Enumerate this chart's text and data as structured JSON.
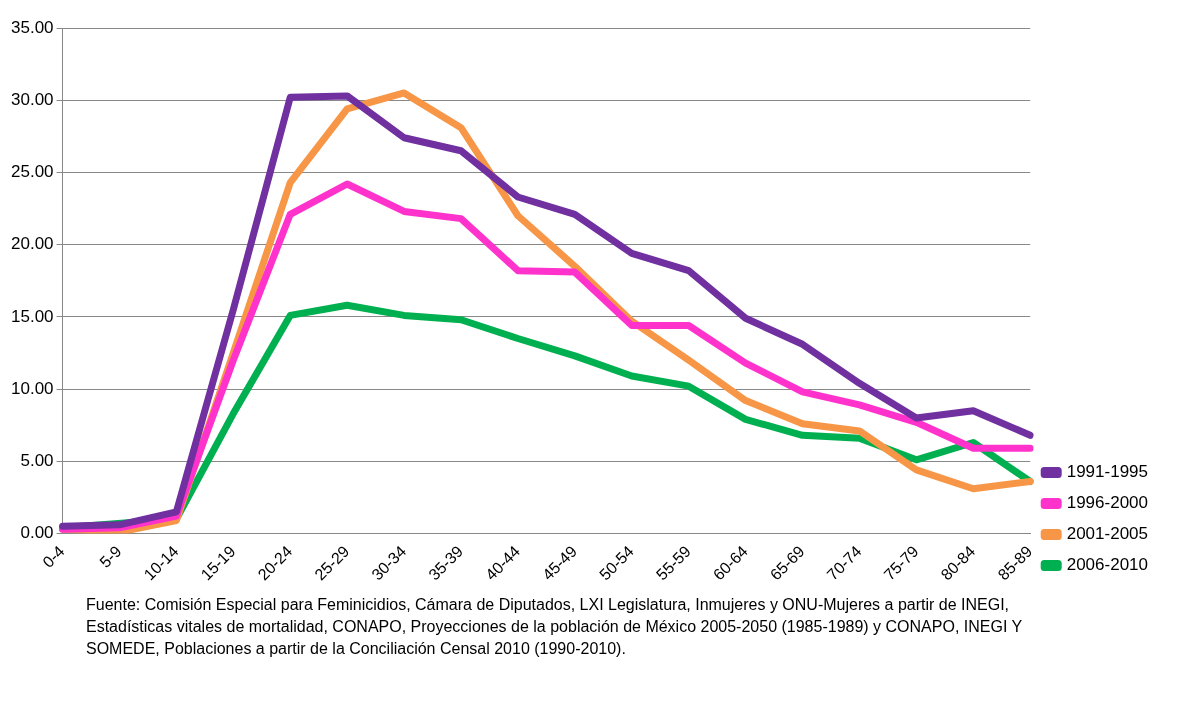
{
  "chart_data": {
    "type": "line",
    "categories": [
      "0-4",
      "5-9",
      "10-14",
      "15-19",
      "20-24",
      "25-29",
      "30-34",
      "35-39",
      "40-44",
      "45-49",
      "50-54",
      "55-59",
      "60-64",
      "65-69",
      "70-74",
      "75-79",
      "80-84",
      "85-89"
    ],
    "series": [
      {
        "name": "1991-1995",
        "color": "#7030a0",
        "values": [
          0.5,
          0.6,
          1.5,
          15.5,
          30.2,
          30.3,
          27.4,
          26.5,
          23.3,
          22.1,
          19.4,
          18.2,
          14.9,
          13.1,
          10.4,
          8.0,
          8.5,
          6.8
        ]
      },
      {
        "name": "1996-2000",
        "color": "#ff33cc",
        "values": [
          0.3,
          0.4,
          1.2,
          12.0,
          22.1,
          24.2,
          22.3,
          21.8,
          18.2,
          18.1,
          14.4,
          14.4,
          11.8,
          9.8,
          8.9,
          7.7,
          5.9,
          5.9
        ]
      },
      {
        "name": "2001-2005",
        "color": "#f79646",
        "values": [
          0.3,
          0.1,
          0.9,
          12.5,
          24.3,
          29.4,
          30.5,
          28.1,
          22.0,
          18.5,
          14.7,
          12.0,
          9.2,
          7.6,
          7.1,
          4.4,
          3.1,
          3.6
        ]
      },
      {
        "name": "2006-2010",
        "color": "#00b050",
        "values": [
          0.4,
          null,
          1.0,
          8.3,
          15.1,
          15.8,
          15.1,
          14.8,
          13.5,
          12.3,
          10.9,
          10.2,
          7.9,
          6.8,
          6.6,
          5.1,
          6.3,
          3.6
        ]
      }
    ],
    "ylim": [
      0,
      35
    ],
    "yticks": [
      {
        "value": 0,
        "label": "0.00"
      },
      {
        "value": 5,
        "label": "5.00"
      },
      {
        "value": 10,
        "label": "10.00"
      },
      {
        "value": 15,
        "label": "15.00"
      },
      {
        "value": 20,
        "label": "20.00"
      },
      {
        "value": 25,
        "label": "25.00"
      },
      {
        "value": 30,
        "label": "30.00"
      },
      {
        "value": 35,
        "label": "35.00"
      }
    ],
    "grid": "y",
    "legend": "right",
    "marker": "none",
    "line_style": "solid",
    "annotations": [
      "Fuente:  Comisión Especial para Feminicidios, Cámara de Diputados, LXI Legislatura, Inmujeres y  ONU-Mujeres a partir de INEGI, Estadísticas  vitales de mortalidad, CONAPO,  Proyecciones de la población de México 2005-2050 (1985-1989) y CONAPO, INEGI Y SOMEDE, Poblaciones a partir de la Conciliación Censal 2010 (1990-2010)."
    ]
  }
}
